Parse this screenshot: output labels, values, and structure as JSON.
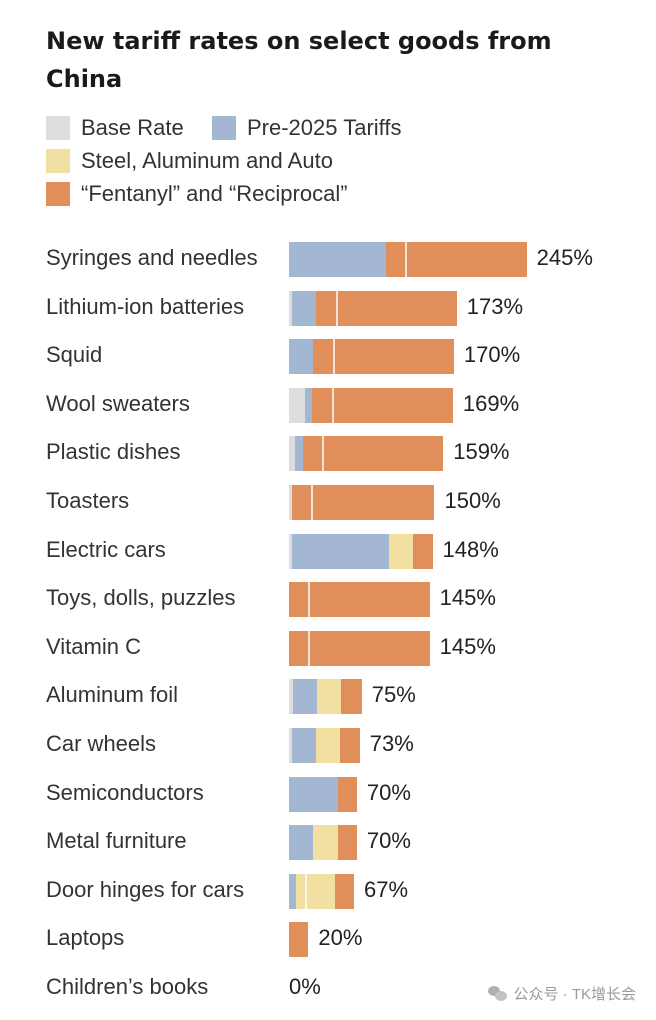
{
  "chart_data": {
    "type": "bar",
    "orientation": "horizontal",
    "stacked": true,
    "title": "New tariff rates on select goods from China",
    "xlabel": "",
    "ylabel": "",
    "legend_position": "top",
    "colors": {
      "Base Rate": "#dddddd",
      "Pre-2025 Tariffs": "#a3b7d3",
      "Steel, Aluminum and Auto": "#f2e0a3",
      "“Fentanyl” and “Reciprocal”": "#e08f5b"
    },
    "categories": [
      "Syringes and needles",
      "Lithium-ion batteries",
      "Squid",
      "Wool sweaters",
      "Plastic dishes",
      "Toasters",
      "Electric cars",
      "Toys, dolls, puzzles",
      "Vitamin C",
      "Aluminum foil",
      "Car wheels",
      "Semiconductors",
      "Metal furniture",
      "Door hinges for cars",
      "Laptops",
      "Children’s books"
    ],
    "series": [
      {
        "name": "Base Rate",
        "values": [
          0,
          3,
          0,
          16,
          6,
          3,
          3,
          0,
          0,
          4,
          3,
          0,
          0,
          0,
          0,
          0
        ]
      },
      {
        "name": "Pre-2025 Tariffs",
        "values": [
          100,
          25,
          25,
          8,
          8,
          0,
          100,
          0,
          0,
          25,
          25,
          50,
          25,
          7,
          0,
          0
        ]
      },
      {
        "name": "Steel, Aluminum and Auto",
        "values": [
          0,
          0,
          0,
          0,
          0,
          0,
          25,
          0,
          0,
          25,
          25,
          0,
          25,
          40,
          0,
          0
        ]
      },
      {
        "name": "“Fentanyl” and “Reciprocal”",
        "values": [
          145,
          145,
          145,
          145,
          145,
          147,
          20,
          145,
          145,
          21,
          20,
          20,
          20,
          20,
          20,
          0
        ]
      }
    ],
    "totals": [
      "245%",
      "173%",
      "170%",
      "169%",
      "159%",
      "150%",
      "148%",
      "145%",
      "145%",
      "75%",
      "73%",
      "70%",
      "70%",
      "67%",
      "20%",
      "0%"
    ],
    "dividers": [
      [
        {
          "series": 3,
          "at": 20
        }
      ],
      [
        {
          "series": 3,
          "at": 20
        }
      ],
      [
        {
          "series": 3,
          "at": 20
        }
      ],
      [
        {
          "series": 3,
          "at": 20
        }
      ],
      [
        {
          "series": 3,
          "at": 20
        }
      ],
      [
        {
          "series": 3,
          "at": 20
        }
      ],
      [],
      [
        {
          "series": 3,
          "at": 20
        }
      ],
      [
        {
          "series": 3,
          "at": 20
        }
      ],
      [],
      [],
      [],
      [],
      [
        {
          "series": 2,
          "at": 10
        }
      ],
      [],
      []
    ]
  },
  "watermark": {
    "text": "公众号 · TK增长会"
  }
}
